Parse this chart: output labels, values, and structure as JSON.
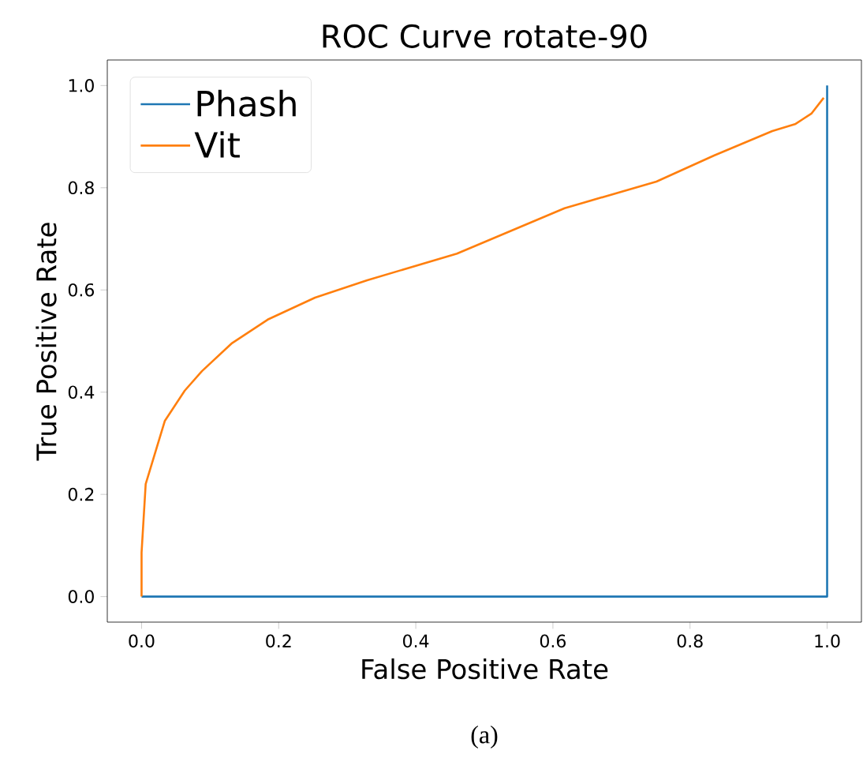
{
  "chart_data": {
    "type": "line",
    "title": "ROC Curve rotate-90",
    "xlabel": "False Positive Rate",
    "ylabel": "True Positive Rate",
    "xlim": [
      -0.05,
      1.05
    ],
    "ylim": [
      -0.05,
      1.05
    ],
    "xticks": [
      {
        "value": 0,
        "label": "0.0"
      },
      0.2,
      0.4,
      0.6,
      0.8,
      {
        "value": 1,
        "label": "1.0"
      }
    ],
    "yticks": [
      {
        "value": 0,
        "label": "0.0"
      },
      0.2,
      0.4,
      0.6,
      0.8,
      {
        "value": 1,
        "label": "1.0"
      }
    ],
    "legend": "top left",
    "grid": false,
    "series": [
      {
        "name": "Phash",
        "color": "#1f77b4",
        "x": [
          0,
          1,
          1
        ],
        "values": [
          0,
          0,
          1
        ]
      },
      {
        "name": "Vit",
        "color": "#ff7f0e",
        "x": [
          0,
          0,
          0.006,
          0.034,
          0.063,
          0.088,
          0.132,
          0.184,
          0.253,
          0.329,
          0.46,
          0.617,
          0.751,
          0.835,
          0.92,
          0.954,
          0.977,
          0.995
        ],
        "values": [
          0,
          0.086,
          0.22,
          0.344,
          0.403,
          0.441,
          0.496,
          0.542,
          0.585,
          0.619,
          0.671,
          0.76,
          0.812,
          0.863,
          0.911,
          0.925,
          0.945,
          0.976
        ]
      }
    ],
    "annotations": [
      "(a)"
    ]
  }
}
